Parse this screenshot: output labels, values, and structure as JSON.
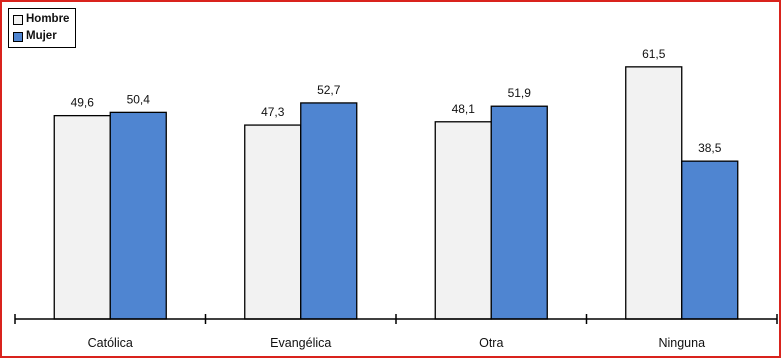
{
  "colors": {
    "hombre": "#f2f2f2",
    "mujer": "#4f85d1",
    "border": "#d9231d"
  },
  "legend": {
    "items": [
      {
        "label": "Hombre",
        "color": "#f2f2f2"
      },
      {
        "label": "Mujer",
        "color": "#4f85d1"
      }
    ]
  },
  "chart_data": {
    "type": "bar",
    "title": "",
    "xlabel": "",
    "ylabel": "",
    "categories": [
      "Católica",
      "Evangélica",
      "Otra",
      "Ninguna"
    ],
    "series": [
      {
        "name": "Hombre",
        "values": [
          49.6,
          47.3,
          48.1,
          61.5
        ],
        "labels": [
          "49,6",
          "47,3",
          "48,1",
          "61,5"
        ],
        "color": "#f2f2f2"
      },
      {
        "name": "Mujer",
        "values": [
          50.4,
          52.7,
          51.9,
          38.5
        ],
        "labels": [
          "50,4",
          "52,7",
          "51,9",
          "38,5"
        ],
        "color": "#4f85d1"
      }
    ],
    "ylim": [
      0,
      70
    ],
    "grid": false,
    "legend_position": "top-left"
  }
}
